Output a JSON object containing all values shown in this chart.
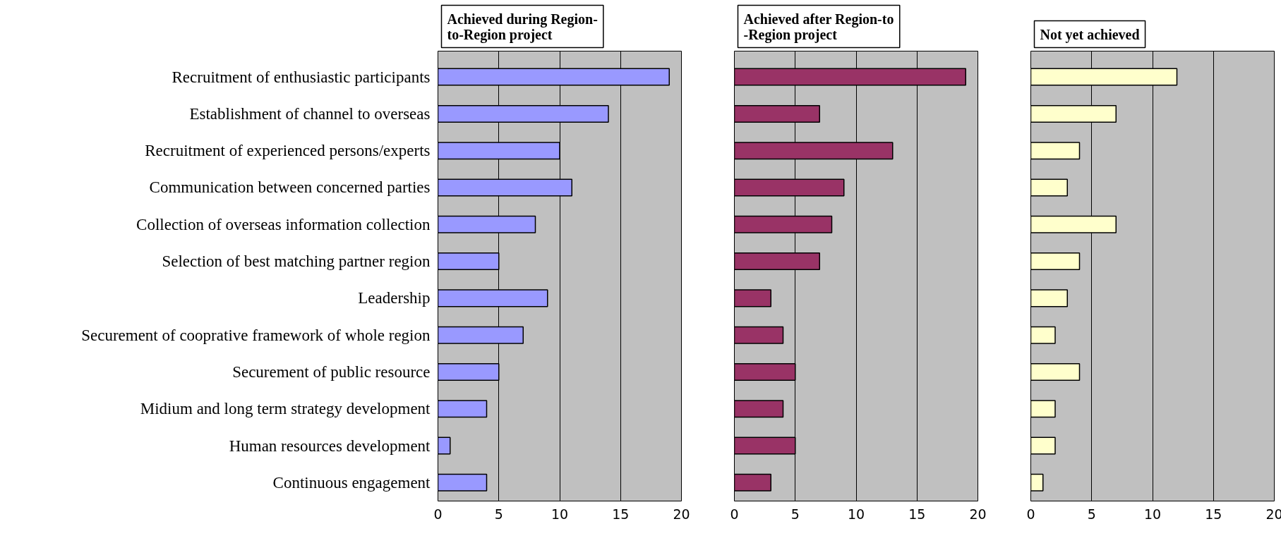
{
  "chart_data": [
    {
      "type": "bar",
      "orientation": "horizontal",
      "title": "Achieved during Region-to-Region project",
      "categories": [
        "Recruitment of enthusiastic participants",
        "Establishment of channel to overseas",
        "Recruitment of experienced persons/experts",
        "Communication between concerned parties",
        "Collection of overseas information collection",
        "Selection of best matching partner region",
        "Leadership",
        "Securement of cooprative framework of whole region",
        "Securement of public resource",
        "Midium and long term strategy development",
        "Human resources development",
        "Continuous engagement"
      ],
      "values": [
        19,
        14,
        10,
        11,
        8,
        5,
        9,
        7,
        5,
        4,
        1,
        4
      ],
      "color": "#9999ff",
      "xlim": [
        0,
        20
      ],
      "xticks": [
        0,
        5,
        10,
        15,
        20
      ],
      "grid": "x"
    },
    {
      "type": "bar",
      "orientation": "horizontal",
      "title": "Achieved after Region-to -Region project",
      "categories": [
        null,
        null,
        null,
        null,
        null,
        null,
        null,
        null,
        null,
        null,
        null,
        null
      ],
      "values": [
        19,
        7,
        13,
        9,
        8,
        7,
        3,
        4,
        5,
        4,
        5,
        3
      ],
      "color": "#993366",
      "xlim": [
        0,
        20
      ],
      "xticks": [
        0,
        5,
        10,
        15,
        20
      ],
      "grid": "x",
      "tick_labels": "x"
    },
    {
      "type": "bar",
      "orientation": "horizontal",
      "title": "Not yet achieved",
      "categories": [
        null,
        null,
        null,
        null,
        null,
        null,
        null,
        null,
        null,
        null,
        null,
        null
      ],
      "values": [
        12,
        7,
        4,
        3,
        7,
        4,
        3,
        2,
        4,
        2,
        2,
        1
      ],
      "color": "#ffffcc",
      "xlim": [
        0,
        20
      ],
      "xticks": [
        0,
        5,
        10,
        15,
        20
      ],
      "grid": "x",
      "tick_labels": "x"
    }
  ]
}
